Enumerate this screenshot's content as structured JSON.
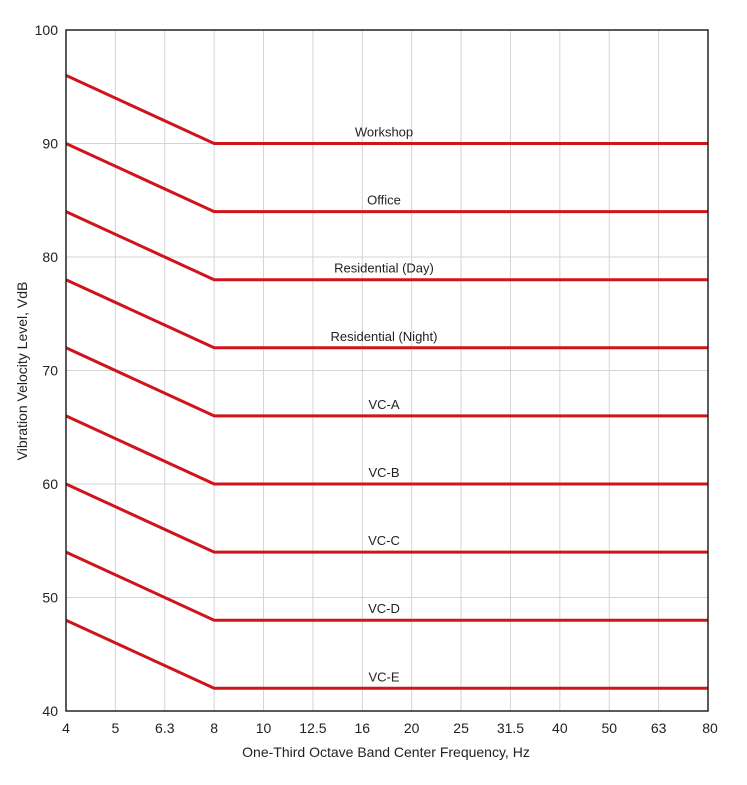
{
  "chart_data": {
    "type": "line",
    "title": "",
    "xlabel": "One-Third Octave Band Center Frequency, Hz",
    "ylabel": "Vibration Velocity Level, VdB",
    "x_scale": "categorical (one-third octave bands)",
    "categories": [
      "4",
      "5",
      "6.3",
      "8",
      "10",
      "12.5",
      "16",
      "20",
      "25",
      "31.5",
      "40",
      "50",
      "63",
      "80"
    ],
    "ylim": [
      40,
      100
    ],
    "yticks": [
      40,
      50,
      60,
      70,
      80,
      90,
      100
    ],
    "grid": true,
    "line_color": "#d0141b",
    "series": [
      {
        "name": "Workshop",
        "points": [
          [
            "4",
            96
          ],
          [
            "8",
            90
          ],
          [
            "80",
            90
          ]
        ]
      },
      {
        "name": "Office",
        "points": [
          [
            "4",
            90
          ],
          [
            "8",
            84
          ],
          [
            "80",
            84
          ]
        ]
      },
      {
        "name": "Residential (Day)",
        "points": [
          [
            "4",
            84
          ],
          [
            "8",
            78
          ],
          [
            "80",
            78
          ]
        ]
      },
      {
        "name": "Residential (Night)",
        "points": [
          [
            "4",
            78
          ],
          [
            "8",
            72
          ],
          [
            "80",
            72
          ]
        ]
      },
      {
        "name": "VC-A",
        "points": [
          [
            "4",
            72
          ],
          [
            "8",
            66
          ],
          [
            "80",
            66
          ]
        ]
      },
      {
        "name": "VC-B",
        "points": [
          [
            "4",
            66
          ],
          [
            "8",
            60
          ],
          [
            "80",
            60
          ]
        ]
      },
      {
        "name": "VC-C",
        "points": [
          [
            "4",
            60
          ],
          [
            "8",
            54
          ],
          [
            "80",
            54
          ]
        ]
      },
      {
        "name": "VC-D",
        "points": [
          [
            "4",
            54
          ],
          [
            "8",
            48
          ],
          [
            "80",
            48
          ]
        ]
      },
      {
        "name": "VC-E",
        "points": [
          [
            "4",
            48
          ],
          [
            "8",
            42
          ],
          [
            "80",
            42
          ]
        ]
      }
    ]
  }
}
